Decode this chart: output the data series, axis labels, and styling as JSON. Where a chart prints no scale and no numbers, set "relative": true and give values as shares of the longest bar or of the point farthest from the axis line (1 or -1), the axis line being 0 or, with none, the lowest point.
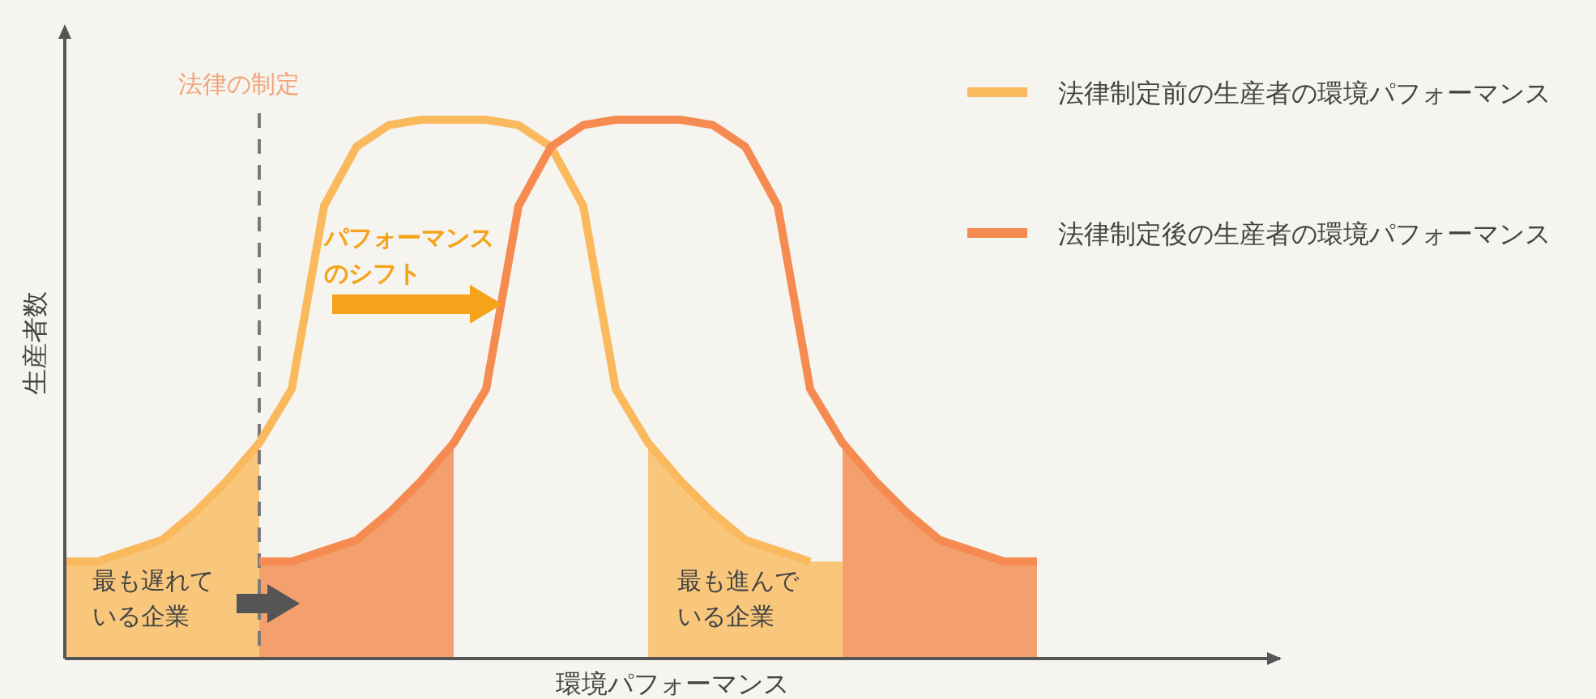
{
  "chart_data": {
    "type": "line",
    "relative": true,
    "xlabel": "環境パフォーマンス",
    "ylabel": "生産者数",
    "categories": [
      null,
      null,
      null,
      null,
      null,
      null,
      null,
      null,
      null,
      null,
      null,
      null,
      null,
      null,
      null,
      null,
      null,
      null,
      null,
      null,
      null,
      null,
      null,
      null,
      null,
      null,
      null,
      null,
      null,
      null,
      null
    ],
    "legend": "top right",
    "series": [
      {
        "type": "area",
        "color": "#f9c77c",
        "values": [
          0.18,
          0.18,
          0.2,
          0.22,
          0.27,
          0.33,
          0.4,
          null,
          null,
          null,
          null,
          null,
          null,
          null,
          null,
          null,
          null,
          null,
          null,
          null,
          null,
          null,
          null,
          null,
          null,
          null,
          null,
          null,
          null,
          null,
          null
        ]
      },
      {
        "type": "area",
        "color": "#f3a06e",
        "values": [
          null,
          null,
          null,
          null,
          null,
          null,
          0.18,
          0.18,
          0.2,
          0.22,
          0.27,
          0.33,
          0.4,
          null,
          null,
          null,
          null,
          null,
          null,
          null,
          null,
          null,
          null,
          null,
          null,
          null,
          null,
          null,
          null,
          null,
          null
        ]
      },
      {
        "type": "area",
        "color": "#f9c77c",
        "values": [
          null,
          null,
          null,
          null,
          null,
          null,
          null,
          null,
          null,
          null,
          null,
          null,
          null,
          null,
          null,
          null,
          null,
          null,
          0.4,
          0.33,
          0.27,
          0.22,
          0.2,
          0.18,
          0.18,
          null,
          null,
          null,
          null,
          null,
          null
        ]
      },
      {
        "type": "area",
        "color": "#f3a06e",
        "values": [
          null,
          null,
          null,
          null,
          null,
          null,
          null,
          null,
          null,
          null,
          null,
          null,
          null,
          null,
          null,
          null,
          null,
          null,
          null,
          null,
          null,
          null,
          null,
          null,
          0.4,
          0.33,
          0.27,
          0.22,
          0.2,
          0.18,
          0.18
        ]
      },
      {
        "name": "法律制定前の生産者の環境パフォーマンス",
        "color": "#fbb95e",
        "values": [
          0.18,
          0.18,
          0.2,
          0.22,
          0.27,
          0.33,
          0.4,
          0.5,
          0.84,
          0.95,
          0.99,
          1,
          1,
          1,
          0.99,
          0.95,
          0.84,
          0.5,
          0.4,
          0.33,
          0.27,
          0.22,
          0.2,
          0.18,
          null,
          null,
          null,
          null,
          null,
          null,
          null
        ]
      },
      {
        "name": "法律制定後の生産者の環境パフォーマンス",
        "color": "#f58b50",
        "values": [
          null,
          null,
          null,
          null,
          null,
          null,
          0.18,
          0.18,
          0.2,
          0.22,
          0.27,
          0.33,
          0.4,
          0.5,
          0.84,
          0.95,
          0.99,
          1,
          1,
          1,
          0.99,
          0.95,
          0.84,
          0.5,
          0.4,
          0.33,
          0.27,
          0.22,
          0.2,
          0.18,
          0.18
        ]
      }
    ],
    "annotations": [
      "法律の制定",
      "パフォーマンスのシフト",
      "最も遅れている企業",
      "最も進んでいる企業"
    ]
  }
}
